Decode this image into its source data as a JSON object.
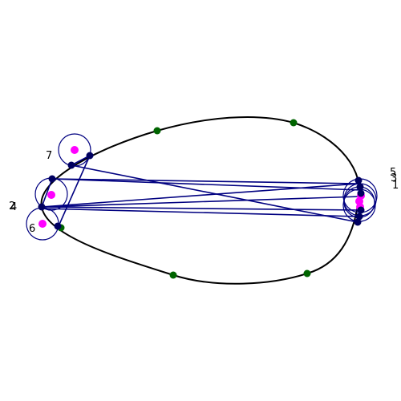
{
  "colors": {
    "curve": "#000000",
    "ring": "#000080",
    "chord": "#000080",
    "dot": "#000060",
    "center": "#ff00ff",
    "control": "#006400"
  },
  "labels": {
    "n1": "1",
    "n2": "2",
    "n3": "3",
    "n4": "4",
    "n5": "5",
    "n6": "6",
    "n7": "7"
  }
}
